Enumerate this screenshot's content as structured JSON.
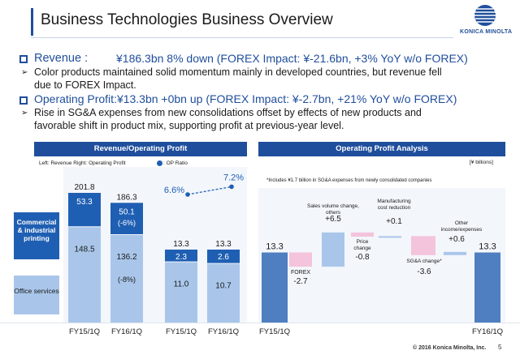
{
  "header": {
    "title": "Business Technologies Business Overview",
    "logo_text": "KONICA MINOLTA",
    "page_number": "5"
  },
  "bullets": {
    "revenue_label": "Revenue :",
    "revenue_value": "¥186.3bn  8% down (FOREX Impact: ¥-21.6bn, +3% YoY w/o FOREX)",
    "revenue_note_1": "Color products maintained solid momentum mainly in developed countries, but revenue fell",
    "revenue_note_2": "due to FOREX Impact.",
    "op_line": "Operating Profit:¥13.3bn +0bn up (FOREX Impact: ¥-2.7bn, +21% YoY w/o FOREX)",
    "op_note_1": "Rise in SG&A expenses from new consolidations offset by effects of new products and",
    "op_note_2": "favorable shift in product mix, supporting profit at previous-year level."
  },
  "left_panel": {
    "title": "Revenue/Operating Profit",
    "legend_note": "Left: Revenue  Right: Operating Profit",
    "op_ratio_label": ": OP Ratio",
    "segment_commercial": "Commercial & industrial printing",
    "segment_office": "Office services"
  },
  "right_panel": {
    "title": "Operating Profit Analysis",
    "unit": "[¥ billions]",
    "footnote": "*Includes ¥1.7 billion in SG&A expenses from newly consolidated companies"
  },
  "chart_data": [
    {
      "type": "bar",
      "title": "Revenue/Operating Profit",
      "categories": [
        "FY15/1Q",
        "FY16/1Q"
      ],
      "revenue": {
        "totals": [
          201.8,
          186.3
        ],
        "series": [
          {
            "name": "Office services",
            "values": [
              148.5,
              136.2
            ],
            "color": "#a9c6ea"
          },
          {
            "name": "Commercial & industrial printing",
            "values": [
              53.3,
              50.1
            ],
            "color": "#1f5fb3"
          }
        ],
        "annotations": {
          "commercial_fy16": "(-6%)",
          "office_fy16": "(-8%)"
        }
      },
      "operating_profit": {
        "totals": [
          13.3,
          13.3
        ],
        "series": [
          {
            "name": "Office services",
            "values": [
              11.0,
              10.7
            ],
            "color": "#a9c6ea"
          },
          {
            "name": "Commercial & industrial printing",
            "values": [
              2.3,
              2.6
            ],
            "color": "#1f5fb3"
          }
        ]
      },
      "op_ratio": {
        "values": [
          6.6,
          7.2
        ],
        "labels": [
          "6.6%",
          "7.2%"
        ],
        "color": "#1f5fb3"
      }
    },
    {
      "type": "bar",
      "title": "Operating Profit Analysis",
      "subtype": "waterfall",
      "steps": [
        {
          "label": "FY15/1Q",
          "value": 13.3,
          "kind": "total",
          "text": "13.3"
        },
        {
          "label": "FOREX",
          "value": -2.7,
          "kind": "delta",
          "text": "-2.7"
        },
        {
          "label": "Sales volume change, others",
          "value": 6.5,
          "kind": "delta",
          "text": "+6.5"
        },
        {
          "label": "Price change",
          "value": -0.8,
          "kind": "delta",
          "text": "-0.8"
        },
        {
          "label": "Manufacturing cost reduction",
          "value": 0.1,
          "kind": "delta",
          "text": "+0.1"
        },
        {
          "label": "SG&A change*",
          "value": -3.6,
          "kind": "delta",
          "text": "-3.6"
        },
        {
          "label": "Other income/expenses",
          "value": 0.6,
          "kind": "delta",
          "text": "+0.6"
        },
        {
          "label": "FY16/1Q",
          "value": 13.3,
          "kind": "total",
          "text": "13.3"
        }
      ],
      "colors": {
        "total": "#4f7fc0",
        "up": "#a9c6ea",
        "down": "#f4c3dc"
      }
    }
  ],
  "footer": {
    "copyright": "© 2016 Konica Minolta, Inc."
  }
}
